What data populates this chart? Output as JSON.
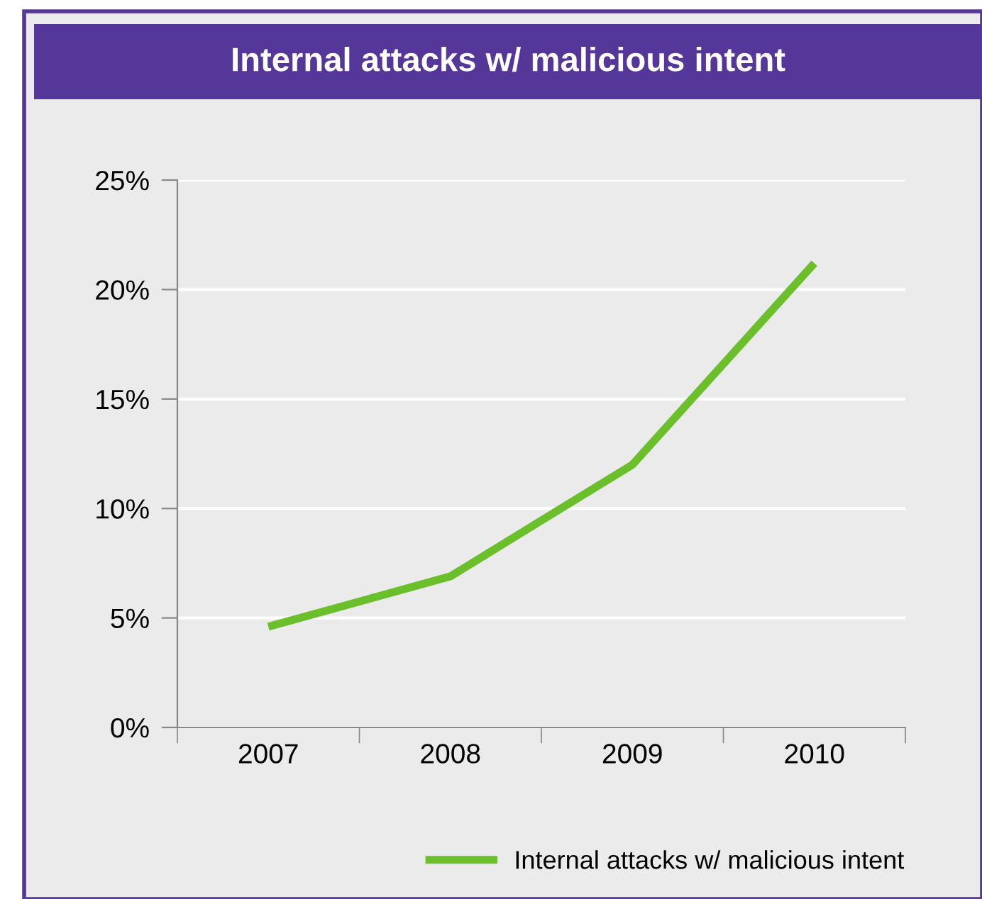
{
  "chart_data": {
    "type": "line",
    "title": "Internal attacks w/ malicious intent",
    "categories": [
      "2007",
      "2008",
      "2009",
      "2010"
    ],
    "series": [
      {
        "name": "Internal attacks w/ malicious intent",
        "color": "#6abf2a",
        "values": [
          4.6,
          6.9,
          12.0,
          21.2
        ]
      }
    ],
    "ylim": [
      0,
      25
    ],
    "yticks": [
      {
        "value": 0,
        "label": "0%"
      },
      {
        "value": 5,
        "label": "5%"
      },
      {
        "value": 10,
        "label": "10%"
      },
      {
        "value": 15,
        "label": "15%"
      },
      {
        "value": 20,
        "label": "20%"
      },
      {
        "value": 25,
        "label": "25%"
      }
    ],
    "grid": "y",
    "legend": "bottom right",
    "line_style": "solid",
    "marker": "none"
  }
}
